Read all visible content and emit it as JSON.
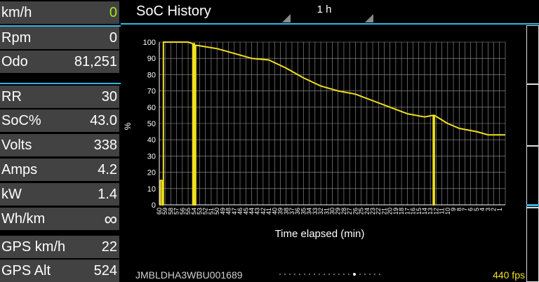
{
  "metrics": [
    {
      "label": "km/h",
      "value": "0",
      "value_color": "green"
    },
    {
      "label": "Rpm",
      "value": "0"
    },
    {
      "label": "Odo",
      "value": "81,251"
    },
    {
      "label": "RR",
      "value": "30"
    },
    {
      "label": "SoC%",
      "value": "43.0"
    },
    {
      "label": "Volts",
      "value": "338"
    },
    {
      "label": "Amps",
      "value": "4.2"
    },
    {
      "label": "kW",
      "value": "1.4"
    },
    {
      "label": "Wh/km",
      "value": "∞"
    },
    {
      "label": "GPS km/h",
      "value": "22"
    },
    {
      "label": "GPS Alt",
      "value": "524"
    }
  ],
  "header": {
    "title": "SoC History",
    "range_selector": "1 h"
  },
  "footer": {
    "vin": "JMBLDHA3WBU001689",
    "fps": "440 fps",
    "page_count": 21,
    "active_page": 15
  },
  "colors": {
    "accent": "#33b5e5",
    "line": "#f0e020",
    "row_bg": "#424242",
    "speed_value": "#a8e61d"
  },
  "chart_data": {
    "type": "line",
    "xlabel": "Time elapsed (min)",
    "ylabel": "%",
    "xlim": [
      60,
      0
    ],
    "ylim": [
      0,
      100
    ],
    "grid": true,
    "y_ticks": [
      0,
      10,
      20,
      30,
      40,
      50,
      60,
      70,
      80,
      90,
      100
    ],
    "x_ticks": [
      "60",
      "59",
      "58",
      "57",
      "56",
      "55",
      "54",
      "53",
      "52",
      "51",
      "50",
      "49",
      "48",
      "47",
      "46",
      "45",
      "44",
      "43",
      "42",
      "41",
      "40",
      "39",
      "38",
      "37",
      "36",
      "35",
      "34",
      "33",
      "32",
      "31",
      "30",
      "29",
      "28",
      "27",
      "26",
      "25",
      "24",
      "23",
      "22",
      "21",
      "20",
      "19",
      "18",
      "17",
      "16",
      "15",
      "14",
      "13",
      "12",
      "11",
      "10",
      "9",
      "8",
      "7",
      "6",
      "5",
      "4",
      "3",
      "2",
      "1"
    ],
    "series": [
      {
        "x": [
          60,
          59.8,
          59.8,
          59.5,
          59.5,
          59.3,
          59.3,
          55,
          54.2,
          54.2,
          54,
          54,
          53.9,
          53.9,
          53.7,
          53.7,
          53.5,
          53.5,
          50,
          47,
          44,
          41,
          38,
          35,
          32,
          29,
          26,
          23,
          20,
          17,
          14,
          12.5,
          12.5,
          12.3,
          12.3,
          10,
          8,
          5,
          3,
          0
        ],
        "y": [
          0,
          0,
          15,
          15,
          0,
          0,
          100,
          100,
          99,
          0,
          0,
          99,
          99,
          0,
          0,
          98,
          98,
          98,
          96,
          93,
          90,
          89,
          84,
          78,
          73,
          70,
          68,
          64,
          60,
          56,
          54,
          55,
          0,
          0,
          55,
          50,
          47,
          45,
          43,
          43
        ]
      }
    ]
  }
}
